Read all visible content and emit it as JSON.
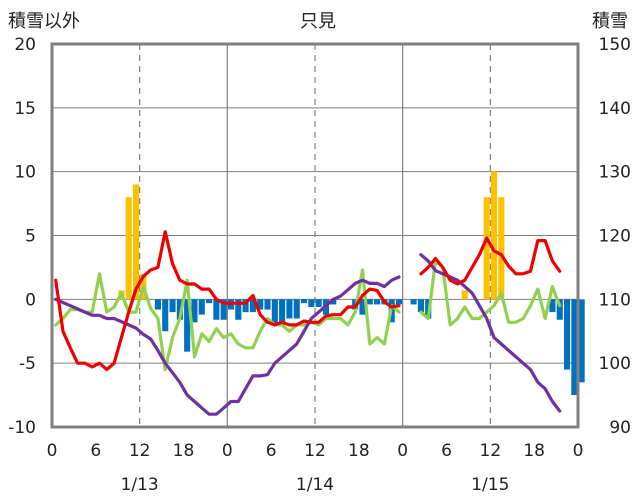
{
  "chart_data": {
    "type": "combo",
    "title": "只見",
    "ylabel_left": "積雪以外",
    "ylabel_right": "積雪",
    "ylim_left": [
      -10,
      20
    ],
    "ylim_right": [
      90,
      150
    ],
    "left_ticks": [
      "20",
      "15",
      "10",
      "5",
      "0",
      "-5",
      "-10"
    ],
    "right_ticks": [
      "150",
      "140",
      "130",
      "120",
      "110",
      "100",
      "90"
    ],
    "x_ticks": [
      "0",
      "6",
      "12",
      "18",
      "0",
      "6",
      "12",
      "18",
      "0",
      "6",
      "12",
      "18",
      "0"
    ],
    "date_labels": [
      "1/13",
      "1/14",
      "1/15"
    ],
    "grid": "dashed at 12h, solid at day boundaries",
    "colors": {
      "red": "#ee0000",
      "green": "#92d050",
      "purple": "#7030a0",
      "orange_bar": "#ffc000",
      "blue_bar": "#0070c0"
    },
    "series": [
      {
        "type": "line",
        "axis": "left",
        "color": "#ee0000",
        "values": [
          1.5,
          -2.5,
          -3.8,
          -5,
          -5,
          -5.3,
          -5,
          -5.5,
          -5,
          -3,
          -1,
          0.8,
          1.8,
          2.3,
          2.5,
          5.3,
          2.8,
          1.5,
          1.2,
          1.2,
          0.8,
          0.8,
          0,
          -0.3,
          -0.3,
          -0.3,
          -0.3,
          0.3,
          -1.2,
          -1.8,
          -2,
          -1.8,
          -2,
          -2,
          -1.7,
          -1.8,
          -1.8,
          -1.3,
          -1.2,
          -1.2,
          -0.6,
          -0.6,
          0.3,
          0.8,
          0.7,
          -0.2,
          -0.6,
          -0.5,
          null,
          null,
          2,
          2.5,
          3.2,
          2.5,
          1.5,
          1.2,
          1.5,
          2.5,
          3.5,
          4.8,
          3.8,
          3.5,
          2.6,
          2,
          2,
          2.2,
          4.6,
          4.6,
          3,
          2.2
        ]
      },
      {
        "type": "line",
        "axis": "left",
        "color": "#92d050",
        "values": [
          -2,
          -1.5,
          -0.8,
          -0.8,
          -1,
          -1,
          2,
          -1,
          -0.6,
          0.5,
          -1,
          -1,
          1,
          -0.7,
          -1.5,
          -5.5,
          -3,
          -1.5,
          1.5,
          -4.5,
          -2.7,
          -3.3,
          -2.3,
          -3,
          -2.7,
          -3.5,
          -3.8,
          -3.8,
          -2.5,
          -1.5,
          -2,
          -2,
          -2.5,
          -2,
          -2,
          -1.8,
          -2,
          -1.5,
          -1.5,
          -1.5,
          -2,
          -1,
          2.3,
          -3.5,
          -3,
          -3.5,
          -0.5,
          -1,
          null,
          null,
          -1,
          -1.5,
          3,
          2.5,
          -2,
          -1.5,
          -0.6,
          -1.5,
          -1.5,
          -1,
          -0.5,
          0.5,
          -1.8,
          -1.8,
          -1.5,
          -0.5,
          0.8,
          -1.5,
          1,
          -0.5
        ]
      }
    ],
    "purple_series": {
      "type": "line",
      "axis": "right",
      "color": "#7030a0",
      "values": [
        110,
        109.5,
        109,
        108.5,
        108,
        107.5,
        107.5,
        107,
        107,
        106.5,
        106,
        105.5,
        104.5,
        103.8,
        102,
        100,
        98.5,
        97,
        95,
        94,
        93,
        92,
        92,
        93,
        94,
        94,
        96,
        98,
        98,
        98.2,
        100,
        101,
        102,
        103,
        105,
        107,
        108,
        109,
        110,
        110.5,
        111.5,
        112.5,
        113,
        112.5,
        112.5,
        112,
        113,
        113.5,
        null,
        null,
        117,
        116,
        114.5,
        114,
        113.5,
        113,
        112,
        111,
        109,
        107,
        104,
        103,
        102,
        101,
        100,
        99,
        97,
        96,
        94,
        92.5
      ]
    },
    "bars": {
      "type": "bar",
      "axis": "left",
      "values": [
        0,
        0,
        0,
        0,
        0,
        0,
        0,
        0,
        0,
        0.7,
        8,
        9,
        2,
        0,
        -0.8,
        -2.5,
        -1,
        -1.6,
        -4.1,
        -1.8,
        -1.2,
        -0.3,
        -1.6,
        -1.6,
        -0.8,
        -1.6,
        -1,
        -1,
        -0.8,
        -0.8,
        -2,
        -2,
        -1.5,
        -1.5,
        -0.3,
        -0.6,
        -0.6,
        -1.2,
        -0.4,
        0,
        0,
        -0.8,
        -1.2,
        -0.4,
        -0.4,
        -0.4,
        -1.8,
        -0.4,
        0,
        -0.4,
        -1,
        -1.5,
        0,
        0,
        0,
        0,
        0.7,
        0,
        0,
        8,
        10,
        8,
        0,
        0,
        0,
        0,
        0,
        0,
        -1,
        -1.6,
        -5.5,
        -7.5,
        -6.5
      ]
    }
  }
}
